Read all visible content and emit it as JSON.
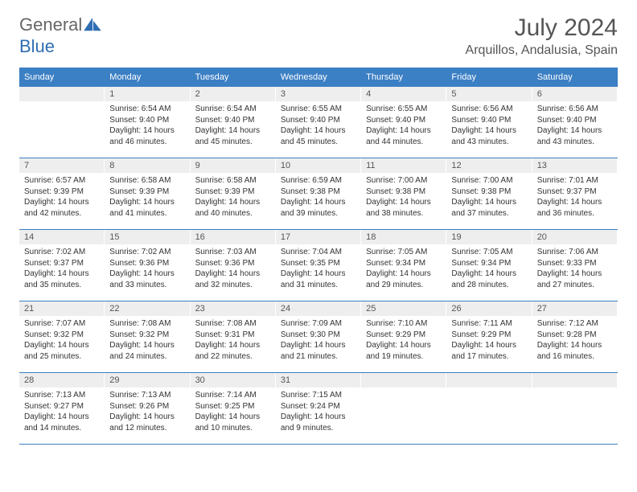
{
  "brand": {
    "word1": "General",
    "word2": "Blue"
  },
  "title": "July 2024",
  "location": "Arquillos, Andalusia, Spain",
  "colors": {
    "accent": "#3b7fc4",
    "header_text": "#ffffff",
    "daynum_bg": "#eeeeee",
    "text": "#333333",
    "muted": "#555555",
    "background": "#ffffff"
  },
  "typography": {
    "base_family": "Arial",
    "title_fontsize": 30,
    "location_fontsize": 16,
    "header_fontsize": 11,
    "cell_fontsize": 10
  },
  "day_headers": [
    "Sunday",
    "Monday",
    "Tuesday",
    "Wednesday",
    "Thursday",
    "Friday",
    "Saturday"
  ],
  "weeks": [
    [
      {
        "n": "",
        "empty": true
      },
      {
        "n": "1",
        "sunrise": "Sunrise: 6:54 AM",
        "sunset": "Sunset: 9:40 PM",
        "daylight1": "Daylight: 14 hours",
        "daylight2": "and 46 minutes."
      },
      {
        "n": "2",
        "sunrise": "Sunrise: 6:54 AM",
        "sunset": "Sunset: 9:40 PM",
        "daylight1": "Daylight: 14 hours",
        "daylight2": "and 45 minutes."
      },
      {
        "n": "3",
        "sunrise": "Sunrise: 6:55 AM",
        "sunset": "Sunset: 9:40 PM",
        "daylight1": "Daylight: 14 hours",
        "daylight2": "and 45 minutes."
      },
      {
        "n": "4",
        "sunrise": "Sunrise: 6:55 AM",
        "sunset": "Sunset: 9:40 PM",
        "daylight1": "Daylight: 14 hours",
        "daylight2": "and 44 minutes."
      },
      {
        "n": "5",
        "sunrise": "Sunrise: 6:56 AM",
        "sunset": "Sunset: 9:40 PM",
        "daylight1": "Daylight: 14 hours",
        "daylight2": "and 43 minutes."
      },
      {
        "n": "6",
        "sunrise": "Sunrise: 6:56 AM",
        "sunset": "Sunset: 9:40 PM",
        "daylight1": "Daylight: 14 hours",
        "daylight2": "and 43 minutes."
      }
    ],
    [
      {
        "n": "7",
        "sunrise": "Sunrise: 6:57 AM",
        "sunset": "Sunset: 9:39 PM",
        "daylight1": "Daylight: 14 hours",
        "daylight2": "and 42 minutes."
      },
      {
        "n": "8",
        "sunrise": "Sunrise: 6:58 AM",
        "sunset": "Sunset: 9:39 PM",
        "daylight1": "Daylight: 14 hours",
        "daylight2": "and 41 minutes."
      },
      {
        "n": "9",
        "sunrise": "Sunrise: 6:58 AM",
        "sunset": "Sunset: 9:39 PM",
        "daylight1": "Daylight: 14 hours",
        "daylight2": "and 40 minutes."
      },
      {
        "n": "10",
        "sunrise": "Sunrise: 6:59 AM",
        "sunset": "Sunset: 9:38 PM",
        "daylight1": "Daylight: 14 hours",
        "daylight2": "and 39 minutes."
      },
      {
        "n": "11",
        "sunrise": "Sunrise: 7:00 AM",
        "sunset": "Sunset: 9:38 PM",
        "daylight1": "Daylight: 14 hours",
        "daylight2": "and 38 minutes."
      },
      {
        "n": "12",
        "sunrise": "Sunrise: 7:00 AM",
        "sunset": "Sunset: 9:38 PM",
        "daylight1": "Daylight: 14 hours",
        "daylight2": "and 37 minutes."
      },
      {
        "n": "13",
        "sunrise": "Sunrise: 7:01 AM",
        "sunset": "Sunset: 9:37 PM",
        "daylight1": "Daylight: 14 hours",
        "daylight2": "and 36 minutes."
      }
    ],
    [
      {
        "n": "14",
        "sunrise": "Sunrise: 7:02 AM",
        "sunset": "Sunset: 9:37 PM",
        "daylight1": "Daylight: 14 hours",
        "daylight2": "and 35 minutes."
      },
      {
        "n": "15",
        "sunrise": "Sunrise: 7:02 AM",
        "sunset": "Sunset: 9:36 PM",
        "daylight1": "Daylight: 14 hours",
        "daylight2": "and 33 minutes."
      },
      {
        "n": "16",
        "sunrise": "Sunrise: 7:03 AM",
        "sunset": "Sunset: 9:36 PM",
        "daylight1": "Daylight: 14 hours",
        "daylight2": "and 32 minutes."
      },
      {
        "n": "17",
        "sunrise": "Sunrise: 7:04 AM",
        "sunset": "Sunset: 9:35 PM",
        "daylight1": "Daylight: 14 hours",
        "daylight2": "and 31 minutes."
      },
      {
        "n": "18",
        "sunrise": "Sunrise: 7:05 AM",
        "sunset": "Sunset: 9:34 PM",
        "daylight1": "Daylight: 14 hours",
        "daylight2": "and 29 minutes."
      },
      {
        "n": "19",
        "sunrise": "Sunrise: 7:05 AM",
        "sunset": "Sunset: 9:34 PM",
        "daylight1": "Daylight: 14 hours",
        "daylight2": "and 28 minutes."
      },
      {
        "n": "20",
        "sunrise": "Sunrise: 7:06 AM",
        "sunset": "Sunset: 9:33 PM",
        "daylight1": "Daylight: 14 hours",
        "daylight2": "and 27 minutes."
      }
    ],
    [
      {
        "n": "21",
        "sunrise": "Sunrise: 7:07 AM",
        "sunset": "Sunset: 9:32 PM",
        "daylight1": "Daylight: 14 hours",
        "daylight2": "and 25 minutes."
      },
      {
        "n": "22",
        "sunrise": "Sunrise: 7:08 AM",
        "sunset": "Sunset: 9:32 PM",
        "daylight1": "Daylight: 14 hours",
        "daylight2": "and 24 minutes."
      },
      {
        "n": "23",
        "sunrise": "Sunrise: 7:08 AM",
        "sunset": "Sunset: 9:31 PM",
        "daylight1": "Daylight: 14 hours",
        "daylight2": "and 22 minutes."
      },
      {
        "n": "24",
        "sunrise": "Sunrise: 7:09 AM",
        "sunset": "Sunset: 9:30 PM",
        "daylight1": "Daylight: 14 hours",
        "daylight2": "and 21 minutes."
      },
      {
        "n": "25",
        "sunrise": "Sunrise: 7:10 AM",
        "sunset": "Sunset: 9:29 PM",
        "daylight1": "Daylight: 14 hours",
        "daylight2": "and 19 minutes."
      },
      {
        "n": "26",
        "sunrise": "Sunrise: 7:11 AM",
        "sunset": "Sunset: 9:29 PM",
        "daylight1": "Daylight: 14 hours",
        "daylight2": "and 17 minutes."
      },
      {
        "n": "27",
        "sunrise": "Sunrise: 7:12 AM",
        "sunset": "Sunset: 9:28 PM",
        "daylight1": "Daylight: 14 hours",
        "daylight2": "and 16 minutes."
      }
    ],
    [
      {
        "n": "28",
        "sunrise": "Sunrise: 7:13 AM",
        "sunset": "Sunset: 9:27 PM",
        "daylight1": "Daylight: 14 hours",
        "daylight2": "and 14 minutes."
      },
      {
        "n": "29",
        "sunrise": "Sunrise: 7:13 AM",
        "sunset": "Sunset: 9:26 PM",
        "daylight1": "Daylight: 14 hours",
        "daylight2": "and 12 minutes."
      },
      {
        "n": "30",
        "sunrise": "Sunrise: 7:14 AM",
        "sunset": "Sunset: 9:25 PM",
        "daylight1": "Daylight: 14 hours",
        "daylight2": "and 10 minutes."
      },
      {
        "n": "31",
        "sunrise": "Sunrise: 7:15 AM",
        "sunset": "Sunset: 9:24 PM",
        "daylight1": "Daylight: 14 hours",
        "daylight2": "and 9 minutes."
      },
      {
        "n": "",
        "empty": true
      },
      {
        "n": "",
        "empty": true
      },
      {
        "n": "",
        "empty": true
      }
    ]
  ]
}
